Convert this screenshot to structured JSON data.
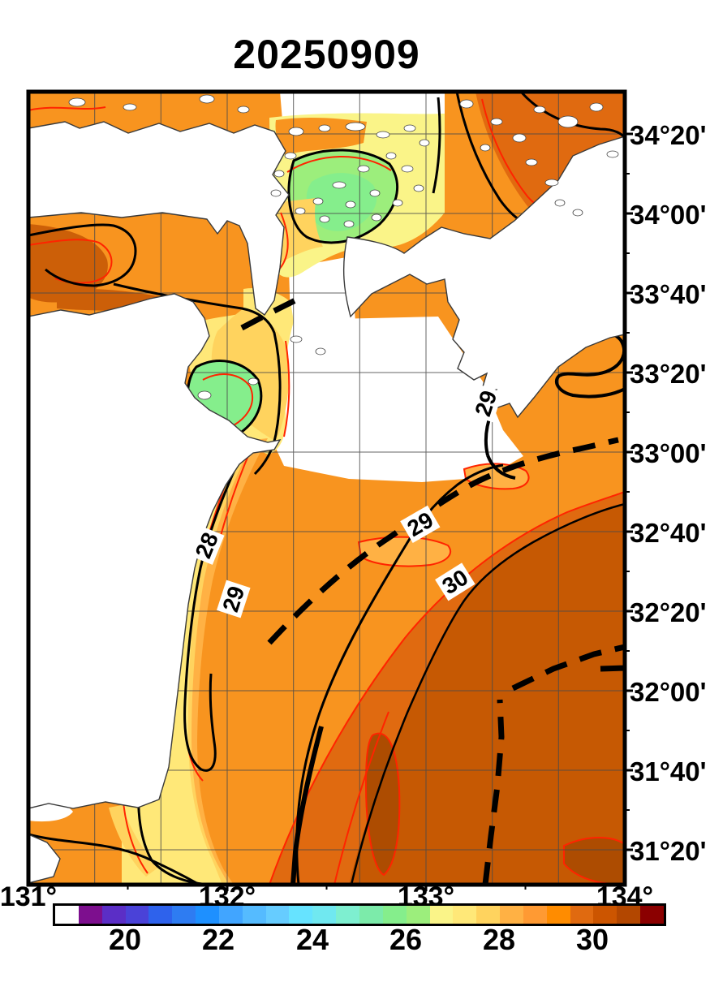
{
  "title": "20250909",
  "map": {
    "lat_labels": [
      "34°20'",
      "34°00'",
      "33°40'",
      "33°20'",
      "33°00'",
      "32°40'",
      "32°20'",
      "32°00'",
      "31°40'",
      "31°20'"
    ],
    "lon_labels": [
      "131°",
      "132°",
      "133°",
      "134°"
    ],
    "grid_interval": "20 minutes",
    "frame_color": "#000000",
    "land_color": "#ffffff",
    "contour_line_colors": {
      "major": "#000000",
      "minor": "#ff2400",
      "front_dashed": "#000000"
    }
  },
  "contours": {
    "labels": [
      {
        "text": "28"
      },
      {
        "text": "29"
      },
      {
        "text": "29"
      },
      {
        "text": "30"
      },
      {
        "text": "29"
      }
    ]
  },
  "colorbar": {
    "tick_labels": [
      "20",
      "22",
      "24",
      "26",
      "28",
      "30"
    ],
    "segment_colors": [
      "#ffffff",
      "#7d0f8e",
      "#5b2ec6",
      "#4a42d8",
      "#2e62ec",
      "#2e7cf2",
      "#1e90ff",
      "#41a5ff",
      "#55bbff",
      "#66ccff",
      "#66e3ff",
      "#70e8f0",
      "#7eefd0",
      "#7cebaa",
      "#85ee8c",
      "#9cee7c",
      "#faf488",
      "#ffe878",
      "#ffd35e",
      "#ffb144",
      "#ff9a33",
      "#ff8c00",
      "#e06a10",
      "#cc5500",
      "#b34700",
      "#8b0000"
    ],
    "range_start": 18.5,
    "range_end": 31.5,
    "step": 0.5
  },
  "chart_data": {
    "type": "contour-map",
    "title": "20250909",
    "x_axis": {
      "label": "longitude",
      "ticks": [
        "131°",
        "132°",
        "133°",
        "134°"
      ]
    },
    "y_axis": {
      "label": "latitude",
      "ticks": [
        "34°20'",
        "34°00'",
        "33°40'",
        "33°20'",
        "33°00'",
        "32°40'",
        "32°20'",
        "32°00'",
        "31°40'",
        "31°20'"
      ]
    },
    "colorbar_ticks": [
      20,
      22,
      24,
      26,
      28,
      30
    ],
    "temperature_range_c": [
      18.5,
      31.5
    ],
    "isotherm_labels": [
      28,
      29,
      29,
      30,
      29
    ],
    "legend_position": "bottom",
    "grid": true,
    "notes": "Sea surface temperature field: ~28-29°C over most coastal seas, 25-27°C patches in the inland-sea channels, 29.5-31°C offshore to the southeast beyond dashed front lines; land and no-data areas are white."
  }
}
